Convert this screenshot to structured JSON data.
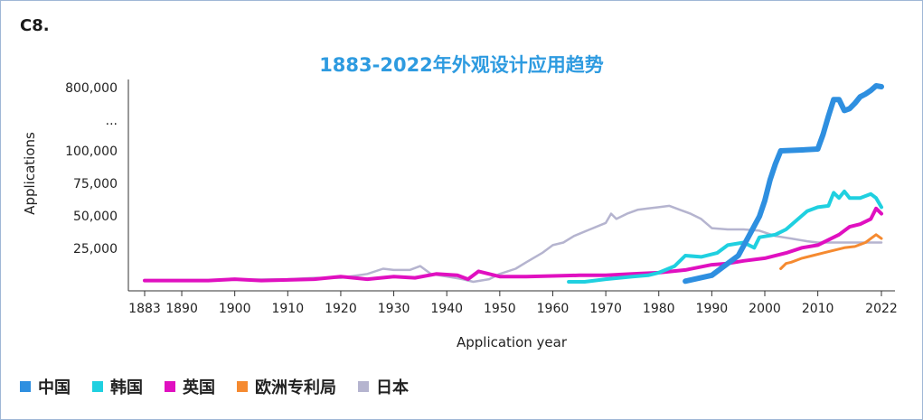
{
  "figure_tag": "C8.",
  "chart_data": {
    "type": "line",
    "title": "1883-2022年外观设计应用趋势",
    "xlabel": "Application year",
    "ylabel": "Applications",
    "x_ticks": [
      "1883",
      "1890",
      "1900",
      "1910",
      "1920",
      "1930",
      "1940",
      "1950",
      "1960",
      "1970",
      "1980",
      "1990",
      "2000",
      "2010",
      "2022"
    ],
    "y_ticks": [
      "25,000",
      "50,000",
      "75,000",
      "100,000",
      "...",
      "800,000"
    ],
    "y_scale": "broken axis: linear 0–100,000, then break to 800,000",
    "legend_position": "bottom",
    "series": [
      {
        "name": "中国",
        "color": "#2e8fe0",
        "points": [
          [
            1985,
            500
          ],
          [
            1990,
            5000
          ],
          [
            1995,
            20000
          ],
          [
            1997,
            35000
          ],
          [
            1999,
            50000
          ],
          [
            2000,
            62000
          ],
          [
            2001,
            78000
          ],
          [
            2002,
            90000
          ],
          [
            2003,
            100000
          ],
          [
            2005,
            105000
          ],
          [
            2007,
            110000
          ],
          [
            2010,
            120000
          ],
          [
            2011,
            280000
          ],
          [
            2012,
            480000
          ],
          [
            2013,
            660000
          ],
          [
            2014,
            660000
          ],
          [
            2015,
            540000
          ],
          [
            2016,
            560000
          ],
          [
            2017,
            620000
          ],
          [
            2018,
            690000
          ],
          [
            2019,
            720000
          ],
          [
            2020,
            760000
          ],
          [
            2021,
            810000
          ],
          [
            2022,
            800000
          ]
        ]
      },
      {
        "name": "韩国",
        "color": "#1fd0e0",
        "points": [
          [
            1963,
            0
          ],
          [
            1966,
            0
          ],
          [
            1970,
            2000
          ],
          [
            1975,
            4000
          ],
          [
            1978,
            5000
          ],
          [
            1980,
            7000
          ],
          [
            1983,
            12000
          ],
          [
            1985,
            20000
          ],
          [
            1988,
            19000
          ],
          [
            1991,
            22000
          ],
          [
            1993,
            28000
          ],
          [
            1996,
            30000
          ],
          [
            1998,
            26000
          ],
          [
            1999,
            34000
          ],
          [
            2002,
            36000
          ],
          [
            2004,
            40000
          ],
          [
            2006,
            47000
          ],
          [
            2008,
            54000
          ],
          [
            2010,
            57000
          ],
          [
            2012,
            58000
          ],
          [
            2013,
            68000
          ],
          [
            2014,
            64000
          ],
          [
            2015,
            69000
          ],
          [
            2016,
            64000
          ],
          [
            2018,
            64000
          ],
          [
            2020,
            67000
          ],
          [
            2021,
            64000
          ],
          [
            2022,
            57000
          ]
        ]
      },
      {
        "name": "英国",
        "color": "#e010c0",
        "points": [
          [
            1883,
            1000
          ],
          [
            1890,
            1000
          ],
          [
            1895,
            1000
          ],
          [
            1900,
            2000
          ],
          [
            1905,
            1000
          ],
          [
            1915,
            2000
          ],
          [
            1920,
            4000
          ],
          [
            1925,
            2000
          ],
          [
            1930,
            4000
          ],
          [
            1934,
            3000
          ],
          [
            1938,
            6000
          ],
          [
            1942,
            5000
          ],
          [
            1944,
            2000
          ],
          [
            1946,
            8000
          ],
          [
            1948,
            6000
          ],
          [
            1950,
            4000
          ],
          [
            1955,
            4000
          ],
          [
            1960,
            4500
          ],
          [
            1965,
            5000
          ],
          [
            1970,
            5000
          ],
          [
            1975,
            6000
          ],
          [
            1980,
            7000
          ],
          [
            1985,
            9000
          ],
          [
            1990,
            13000
          ],
          [
            1993,
            14000
          ],
          [
            1996,
            16000
          ],
          [
            2000,
            18000
          ],
          [
            2004,
            22000
          ],
          [
            2007,
            26000
          ],
          [
            2010,
            28000
          ],
          [
            2012,
            32000
          ],
          [
            2014,
            36000
          ],
          [
            2016,
            42000
          ],
          [
            2018,
            44000
          ],
          [
            2020,
            48000
          ],
          [
            2021,
            56000
          ],
          [
            2022,
            52000
          ]
        ]
      },
      {
        "name": "欧洲专利局",
        "color": "#f58a30",
        "points": [
          [
            2003,
            10000
          ],
          [
            2004,
            14000
          ],
          [
            2005,
            15000
          ],
          [
            2007,
            18000
          ],
          [
            2009,
            20000
          ],
          [
            2011,
            22000
          ],
          [
            2013,
            24000
          ],
          [
            2015,
            26000
          ],
          [
            2017,
            27000
          ],
          [
            2019,
            30000
          ],
          [
            2020,
            33000
          ],
          [
            2021,
            36000
          ],
          [
            2022,
            33000
          ]
        ]
      },
      {
        "name": "日本",
        "color": "#b5b4cf",
        "points": [
          [
            1890,
            1000
          ],
          [
            1900,
            1500
          ],
          [
            1910,
            2000
          ],
          [
            1915,
            3000
          ],
          [
            1920,
            3000
          ],
          [
            1925,
            6000
          ],
          [
            1928,
            10000
          ],
          [
            1930,
            9000
          ],
          [
            1933,
            9000
          ],
          [
            1935,
            12000
          ],
          [
            1937,
            6000
          ],
          [
            1940,
            4000
          ],
          [
            1943,
            2000
          ],
          [
            1945,
            0
          ],
          [
            1948,
            2000
          ],
          [
            1950,
            6000
          ],
          [
            1953,
            10000
          ],
          [
            1955,
            15000
          ],
          [
            1958,
            22000
          ],
          [
            1960,
            28000
          ],
          [
            1962,
            30000
          ],
          [
            1964,
            35000
          ],
          [
            1967,
            40000
          ],
          [
            1970,
            45000
          ],
          [
            1971,
            52000
          ],
          [
            1972,
            48000
          ],
          [
            1974,
            52000
          ],
          [
            1976,
            55000
          ],
          [
            1978,
            56000
          ],
          [
            1980,
            57000
          ],
          [
            1982,
            58000
          ],
          [
            1984,
            55000
          ],
          [
            1986,
            52000
          ],
          [
            1988,
            48000
          ],
          [
            1990,
            41000
          ],
          [
            1993,
            40000
          ],
          [
            1996,
            40000
          ],
          [
            1999,
            39000
          ],
          [
            2002,
            35000
          ],
          [
            2005,
            33000
          ],
          [
            2008,
            31000
          ],
          [
            2010,
            30000
          ],
          [
            2013,
            30000
          ],
          [
            2016,
            30000
          ],
          [
            2019,
            30000
          ],
          [
            2022,
            30000
          ]
        ]
      }
    ]
  }
}
